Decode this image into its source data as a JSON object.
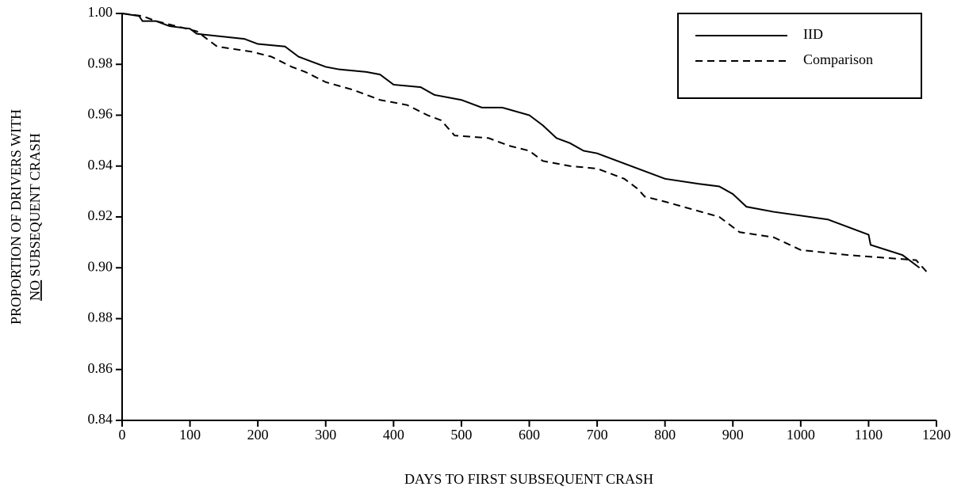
{
  "chart_data": {
    "type": "line",
    "x_label": "DAYS TO FIRST SUBSEQUENT CRASH",
    "y_label": [
      "PROPORTION OF DRIVERS WITH",
      "NO",
      "SUBSEQUENT CRASH"
    ],
    "xlim": [
      0,
      1200
    ],
    "ylim": [
      0.84,
      1
    ],
    "xticks": [
      0,
      100,
      200,
      300,
      400,
      500,
      600,
      700,
      800,
      900,
      1000,
      1100,
      1200
    ],
    "yticks": [
      {
        "value": 1,
        "label": "1.00"
      },
      0.98,
      0.96,
      0.94,
      0.92,
      {
        "value": 0.9,
        "label": "0.90"
      },
      0.88,
      0.86,
      0.84
    ],
    "legend": "top-right",
    "series": [
      {
        "name": "IID",
        "color": "#000000",
        "dash": "solid",
        "x": [
          0,
          25,
          30,
          50,
          70,
          100,
          110,
          180,
          200,
          240,
          260,
          280,
          300,
          320,
          360,
          380,
          400,
          440,
          460,
          500,
          530,
          560,
          600,
          620,
          640,
          660,
          680,
          700,
          740,
          770,
          800,
          850,
          880,
          900,
          920,
          960,
          1040,
          1080,
          1100,
          1103,
          1150,
          1175
        ],
        "values": [
          1,
          0.999,
          0.997,
          0.997,
          0.995,
          0.994,
          0.992,
          0.99,
          0.988,
          0.987,
          0.983,
          0.981,
          0.979,
          0.978,
          0.977,
          0.976,
          0.972,
          0.971,
          0.968,
          0.966,
          0.963,
          0.963,
          0.96,
          0.956,
          0.951,
          0.949,
          0.946,
          0.945,
          0.941,
          0.938,
          0.935,
          0.933,
          0.932,
          0.929,
          0.924,
          0.922,
          0.919,
          0.915,
          0.913,
          0.909,
          0.905,
          0.9
        ]
      },
      {
        "name": "Comparison",
        "color": "#000000",
        "dash": "dashed",
        "x": [
          0,
          30,
          50,
          80,
          110,
          140,
          190,
          220,
          250,
          270,
          300,
          340,
          380,
          420,
          450,
          470,
          490,
          540,
          570,
          600,
          620,
          660,
          700,
          740,
          760,
          770,
          800,
          840,
          880,
          910,
          960,
          1000,
          1070,
          1120,
          1170,
          1187
        ],
        "values": [
          1,
          0.999,
          0.997,
          0.995,
          0.993,
          0.987,
          0.985,
          0.983,
          0.979,
          0.977,
          0.973,
          0.97,
          0.966,
          0.964,
          0.96,
          0.958,
          0.952,
          0.951,
          0.948,
          0.946,
          0.942,
          0.94,
          0.939,
          0.935,
          0.931,
          0.928,
          0.926,
          0.923,
          0.92,
          0.914,
          0.912,
          0.907,
          0.905,
          0.904,
          0.903,
          0.898
        ]
      }
    ]
  }
}
